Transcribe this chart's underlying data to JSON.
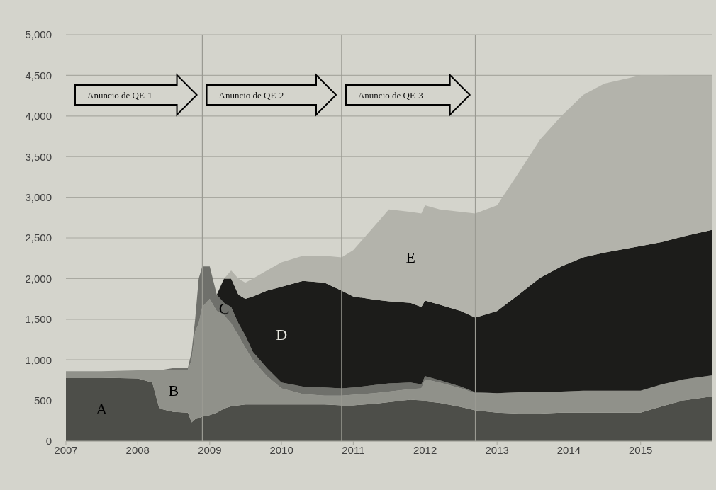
{
  "chart_data": {
    "type": "area",
    "stacked": true,
    "grid": "y",
    "x": [
      "2007-01-01",
      "2007-07-01",
      "2008-01-01",
      "2008-03-15",
      "2008-04-20",
      "2008-07-01",
      "2008-09-12",
      "2008-10-01",
      "2008-10-19",
      "2008-11-06",
      "2008-11-24",
      "2009-01-01",
      "2009-02-06",
      "2009-03-15",
      "2009-04-20",
      "2009-05-27",
      "2009-07-01",
      "2009-08-08",
      "2009-10-19",
      "2010-01-01",
      "2010-04-20",
      "2010-08-08",
      "2010-11-03",
      "2011-01-01",
      "2011-04-20",
      "2011-07-01",
      "2011-10-19",
      "2011-12-13",
      "2012-01-01",
      "2012-03-15",
      "2012-07-01",
      "2012-09-12",
      "2013-01-01",
      "2013-04-20",
      "2013-08-08",
      "2013-11-24",
      "2014-03-15",
      "2014-07-01",
      "2015-01-01",
      "2015-04-20",
      "2015-08-08",
      "2016-01-01"
    ],
    "series": [
      {
        "name": "A",
        "color": "#4d4e49",
        "values": [
          780,
          780,
          770,
          720,
          400,
          360,
          350,
          230,
          270,
          280,
          300,
          320,
          350,
          400,
          430,
          440,
          450,
          450,
          450,
          450,
          450,
          450,
          440,
          440,
          460,
          480,
          510,
          500,
          490,
          470,
          420,
          380,
          350,
          340,
          340,
          350,
          350,
          350,
          350,
          430,
          500,
          550
        ]
      },
      {
        "name": "B",
        "color": "#90918a",
        "values": [
          80,
          80,
          100,
          150,
          470,
          520,
          530,
          770,
          1080,
          1170,
          1350,
          1430,
          1250,
          1150,
          1020,
          860,
          700,
          550,
          350,
          200,
          130,
          110,
          120,
          130,
          130,
          130,
          130,
          150,
          270,
          250,
          230,
          210,
          240,
          260,
          270,
          260,
          270,
          270,
          270,
          270,
          260,
          260
        ]
      },
      {
        "name": "C",
        "color": "#6f706b",
        "values": [
          0,
          0,
          0,
          0,
          0,
          20,
          20,
          100,
          150,
          550,
          500,
          400,
          200,
          150,
          200,
          150,
          150,
          100,
          100,
          70,
          90,
          100,
          90,
          90,
          100,
          100,
          80,
          50,
          40,
          30,
          20,
          10,
          0,
          0,
          0,
          0,
          0,
          0,
          0,
          0,
          0,
          0
        ]
      },
      {
        "name": "D",
        "color": "#1c1c1a",
        "values": [
          0,
          0,
          0,
          0,
          0,
          0,
          0,
          0,
          0,
          0,
          0,
          0,
          0,
          300,
          350,
          350,
          450,
          680,
          950,
          1180,
          1300,
          1290,
          1200,
          1120,
          1050,
          1010,
          980,
          950,
          930,
          930,
          930,
          920,
          1010,
          1200,
          1400,
          1540,
          1640,
          1700,
          1780,
          1750,
          1760,
          1790
        ]
      },
      {
        "name": "E",
        "color": "#b3b3ab",
        "values": [
          0,
          0,
          0,
          0,
          0,
          0,
          0,
          0,
          0,
          0,
          0,
          0,
          0,
          0,
          100,
          200,
          200,
          220,
          250,
          300,
          310,
          330,
          410,
          570,
          910,
          1130,
          1120,
          1150,
          1170,
          1170,
          1220,
          1280,
          1300,
          1500,
          1700,
          1850,
          2000,
          2080,
          2100,
          2050,
          1970,
          1890
        ]
      }
    ],
    "xlim": [
      "2007-01-01",
      "2016-01-01"
    ],
    "xticks": [
      {
        "value": "2007-01-01",
        "label": "2007"
      },
      {
        "value": "2008-01-01",
        "label": "2008"
      },
      {
        "value": "2009-01-01",
        "label": "2009"
      },
      {
        "value": "2010-01-01",
        "label": "2010"
      },
      {
        "value": "2011-01-01",
        "label": "2011"
      },
      {
        "value": "2012-01-01",
        "label": "2012"
      },
      {
        "value": "2013-01-01",
        "label": "2013"
      },
      {
        "value": "2014-01-01",
        "label": "2014"
      },
      {
        "value": "2015-01-01",
        "label": "2015"
      }
    ],
    "ylim": [
      0,
      5000
    ],
    "yticks": [
      0,
      500,
      {
        "value": 1000,
        "label": "1,000"
      },
      {
        "value": 1500,
        "label": "1,500"
      },
      {
        "value": 2000,
        "label": "2,000"
      },
      {
        "value": 2500,
        "label": "2,500"
      },
      {
        "value": 3000,
        "label": "3,000"
      },
      {
        "value": 3500,
        "label": "3,500"
      },
      {
        "value": 4000,
        "label": "4,000"
      },
      {
        "value": 4500,
        "label": "4,500"
      },
      {
        "value": 5000,
        "label": "5,000"
      }
    ],
    "ref_lines": [
      {
        "axis": "x",
        "value": "2008-11-25",
        "color": "#9a9a92"
      },
      {
        "axis": "x",
        "value": "2010-11-03",
        "color": "#9a9a92"
      },
      {
        "axis": "x",
        "value": "2012-09-13",
        "color": "#9a9a92"
      }
    ],
    "annotations": [
      "Anuncio de QE-1",
      "Anuncio de QE-2",
      "Anuncio de QE-3"
    ]
  }
}
